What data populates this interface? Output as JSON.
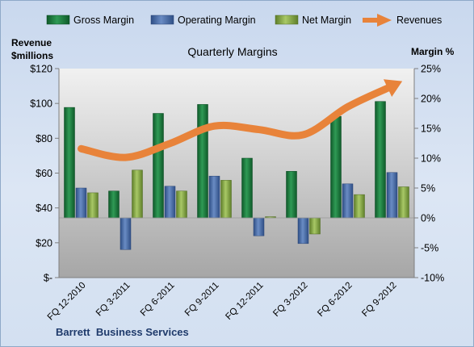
{
  "chart_data": {
    "type": "bar+line",
    "title": "Quarterly Margins",
    "footer": "Barrett  Business Services",
    "categories": [
      "FQ 12-2010",
      "FQ 3-2011",
      "FQ 6-2011",
      "FQ 9-2011",
      "FQ 12-2011",
      "FQ 3-2012",
      "FQ 6-2012",
      "FQ 9-2012"
    ],
    "left_axis": {
      "label_line1": "Revenue",
      "label_line2": "$millions",
      "ylim": [
        0,
        120
      ],
      "ticks": [
        {
          "value": 0,
          "label": "$-"
        },
        {
          "value": 20,
          "label": "$20"
        },
        {
          "value": 40,
          "label": "$40"
        },
        {
          "value": 60,
          "label": "$60"
        },
        {
          "value": 80,
          "label": "$80"
        },
        {
          "value": 100,
          "label": "$100"
        },
        {
          "value": 120,
          "label": "$120"
        }
      ]
    },
    "right_axis": {
      "label": "Margin %",
      "ylim": [
        -10,
        25
      ],
      "ticks": [
        {
          "value": -10,
          "label": "-10%"
        },
        {
          "value": -5,
          "label": "-5%"
        },
        {
          "value": 0,
          "label": "0%"
        },
        {
          "value": 5,
          "label": "5%"
        },
        {
          "value": 10,
          "label": "10%"
        },
        {
          "value": 15,
          "label": "15%"
        },
        {
          "value": 20,
          "label": "20%"
        },
        {
          "value": 25,
          "label": "25%"
        }
      ]
    },
    "bar_series": [
      {
        "name": "Gross Margin",
        "color": "#1f7a3e",
        "values": [
          18.5,
          4.5,
          17.5,
          19.0,
          10.0,
          7.8,
          17.0,
          19.5
        ]
      },
      {
        "name": "Operating Margin",
        "color": "#4a6ea8",
        "values": [
          5.0,
          -5.3,
          5.3,
          7.0,
          -3.0,
          -4.3,
          5.7,
          7.6
        ]
      },
      {
        "name": "Net Margin",
        "color": "#8fb04a",
        "values": [
          4.2,
          8.0,
          4.5,
          6.3,
          0.2,
          -2.7,
          3.9,
          5.2
        ]
      }
    ],
    "line_series": {
      "name": "Revenues",
      "color": "#e8833a",
      "axis": "left",
      "values": [
        74,
        69,
        77,
        87,
        85,
        82,
        98,
        110
      ]
    },
    "legend_position": "top",
    "grid": false
  }
}
